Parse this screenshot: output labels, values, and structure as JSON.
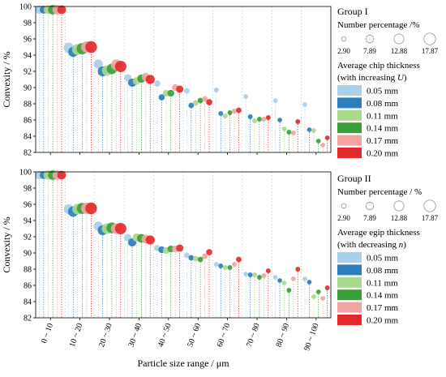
{
  "chart_data": {
    "type": "scatter",
    "xlabel": "Particle size range / μm",
    "categories": [
      "0 ~ 10",
      "10 ~ 20",
      "20 ~ 30",
      "30 ~ 40",
      "40 ~ 50",
      "50 ~ 60",
      "60 ~ 70",
      "70 ~ 80",
      "80 ~ 90",
      "90 ~ 100"
    ],
    "ylabel": "Convexity / %",
    "ylim": [
      82,
      100
    ],
    "yticks": [
      82,
      84,
      86,
      88,
      90,
      92,
      94,
      96,
      98,
      100
    ],
    "size_legend": {
      "title": "Number percentage /%",
      "values": [
        "2.90",
        "7.89",
        "12.88",
        "17.87"
      ]
    },
    "color_legend": {
      "entries": [
        "0.05 mm",
        "0.08 mm",
        "0.11 mm",
        "0.14 mm",
        "0.17 mm",
        "0.20 mm"
      ],
      "colors": [
        "#a9cfea",
        "#2e7ebc",
        "#a9d98c",
        "#3aa13a",
        "#f4a3a3",
        "#e32b2b"
      ]
    },
    "panels": [
      {
        "group_label": "Group I",
        "color_legend_title_line1": "Average chip thickness",
        "color_legend_title_line2_prefix": "(with increasing ",
        "color_legend_title_var": "U",
        "color_legend_title_line2_suffix": ")",
        "size_legend_title": "Number percentage /%",
        "series": [
          {
            "name": "0.05 mm",
            "convexity": [
              99.6,
              94.9,
              92.9,
              91.2,
              90.5,
              89.6,
              89.7,
              88.9,
              88.4,
              87.9
            ],
            "number_percentage": [
              9,
              14,
              11,
              7,
              5,
              4,
              3,
              2.9,
              2.9,
              2.9
            ]
          },
          {
            "name": "0.08 mm",
            "convexity": [
              99.6,
              94.4,
              92.0,
              90.6,
              88.8,
              87.8,
              86.8,
              86.4,
              86.0,
              84.8
            ],
            "number_percentage": [
              8,
              13,
              13,
              9,
              5,
              4,
              3,
              3,
              2.9,
              2.9
            ]
          },
          {
            "name": "0.11 mm",
            "convexity": [
              99.6,
              94.7,
              92.1,
              90.8,
              89.3,
              88.1,
              86.5,
              85.9,
              84.9,
              84.7
            ],
            "number_percentage": [
              10,
              16,
              14,
              8,
              6,
              4,
              3,
              3,
              2.9,
              2.9
            ]
          },
          {
            "name": "0.14 mm",
            "convexity": [
              99.6,
              94.8,
              92.3,
              91.1,
              89.3,
              88.4,
              86.9,
              86.1,
              84.5,
              83.4
            ],
            "number_percentage": [
              12,
              17,
              14,
              9,
              6,
              4,
              3,
              3,
              3,
              2.9
            ]
          },
          {
            "name": "0.17 mm",
            "convexity": [
              99.6,
              95.0,
              92.8,
              91.3,
              90.0,
              88.6,
              87.1,
              86.1,
              84.4,
              82.9
            ],
            "number_percentage": [
              12,
              17,
              15,
              9,
              6,
              4,
              3,
              3,
              2.9,
              2.9
            ]
          },
          {
            "name": "0.20 mm",
            "convexity": [
              99.6,
              95.0,
              92.6,
              91.0,
              89.8,
              88.2,
              87.2,
              86.3,
              85.8,
              83.8
            ],
            "number_percentage": [
              10,
              17.87,
              17,
              11,
              7,
              5,
              4,
              3,
              3,
              2.9
            ]
          }
        ]
      },
      {
        "group_label": "Group II",
        "color_legend_title_line1": "Average egip thickness",
        "color_legend_title_line2_prefix": "(with decreasing ",
        "color_legend_title_var": "n",
        "color_legend_title_line2_suffix": ")",
        "size_legend_title": "Number percentage / %",
        "series": [
          {
            "name": "0.05 mm",
            "convexity": [
              99.6,
              95.4,
              93.3,
              91.9,
              90.6,
              89.7,
              88.6,
              87.4,
              87.0,
              86.8
            ],
            "number_percentage": [
              9,
              13,
              11,
              7,
              5,
              4,
              3,
              3,
              2.9,
              2.9
            ]
          },
          {
            "name": "0.08 mm",
            "convexity": [
              99.6,
              95.1,
              92.8,
              91.3,
              90.4,
              89.4,
              88.4,
              87.3,
              86.6,
              86.4
            ],
            "number_percentage": [
              8,
              14,
              13,
              9,
              6,
              4,
              3,
              3,
              2.9,
              2.9
            ]
          },
          {
            "name": "0.11 mm",
            "convexity": [
              99.6,
              95.4,
              93.0,
              91.9,
              90.3,
              89.3,
              88.2,
              87.3,
              86.3,
              84.6
            ],
            "number_percentage": [
              11,
              15,
              15,
              9,
              6,
              4,
              3,
              3,
              2.9,
              2.9
            ]
          },
          {
            "name": "0.14 mm",
            "convexity": [
              99.6,
              95.5,
              93.1,
              91.8,
              90.5,
              89.2,
              88.2,
              87.0,
              85.4,
              85.2
            ],
            "number_percentage": [
              12,
              16,
              15,
              10,
              6,
              4,
              3,
              3,
              3,
              2.9
            ]
          },
          {
            "name": "0.17 mm",
            "convexity": [
              99.6,
              95.5,
              93.0,
              91.7,
              90.5,
              89.6,
              88.6,
              87.2,
              86.8,
              84.4
            ],
            "number_percentage": [
              12,
              17,
              15,
              10,
              6,
              4,
              3,
              3,
              2.9,
              2.9
            ]
          },
          {
            "name": "0.20 mm",
            "convexity": [
              99.6,
              95.5,
              93.0,
              91.6,
              90.6,
              90.1,
              89.2,
              87.8,
              88.0,
              85.7
            ],
            "number_percentage": [
              10,
              17.87,
              17,
              11,
              7,
              5,
              4,
              3,
              3,
              3
            ]
          }
        ]
      }
    ]
  }
}
